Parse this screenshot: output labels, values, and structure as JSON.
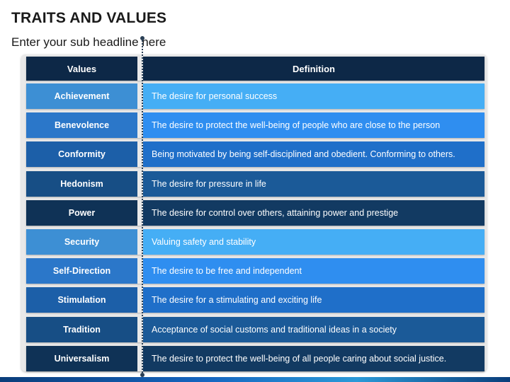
{
  "header": {
    "title": "TRAITS AND VALUES",
    "subtitle": "Enter your sub headline here"
  },
  "table": {
    "columns": [
      "Values",
      "Definition"
    ],
    "rows": [
      {
        "value": "Achievement",
        "definition": "The desire for personal success",
        "color_left": "#3d8fd4",
        "color_right": "#45aef5"
      },
      {
        "value": "Benevolence",
        "definition": "The desire to protect the well-being of people who are close to the person",
        "color_left": "#2b77c9",
        "color_right": "#2f8ef0"
      },
      {
        "value": "Conformity",
        "definition": "Being motivated by being self-disciplined and obedient. Conforming to others.",
        "color_left": "#1c5fa8",
        "color_right": "#1f6fc9"
      },
      {
        "value": "Hedonism",
        "definition": "The desire for pressure in life",
        "color_left": "#174e85",
        "color_right": "#1b5a98"
      },
      {
        "value": "Power",
        "definition": "The desire for control over others, attaining power and prestige",
        "color_left": "#0f3256",
        "color_right": "#123a62"
      },
      {
        "value": "Security",
        "definition": "Valuing safety and stability",
        "color_left": "#3d8fd4",
        "color_right": "#45aef5"
      },
      {
        "value": "Self-Direction",
        "definition": "The desire to be free and independent",
        "color_left": "#2b77c9",
        "color_right": "#2f8ef0"
      },
      {
        "value": "Stimulation",
        "definition": "The desire for a stimulating and exciting life",
        "color_left": "#1c5fa8",
        "color_right": "#1f6fc9"
      },
      {
        "value": "Tradition",
        "definition": "Acceptance of social customs and traditional ideas in a society",
        "color_left": "#174e85",
        "color_right": "#1b5a98"
      },
      {
        "value": "Universalism",
        "definition": "The desire to protect the well-being of all people caring about social justice.",
        "color_left": "#0f3256",
        "color_right": "#123a62"
      }
    ]
  },
  "colors": {
    "header_bg": "#0d2847",
    "divider": "#2a3f55"
  }
}
